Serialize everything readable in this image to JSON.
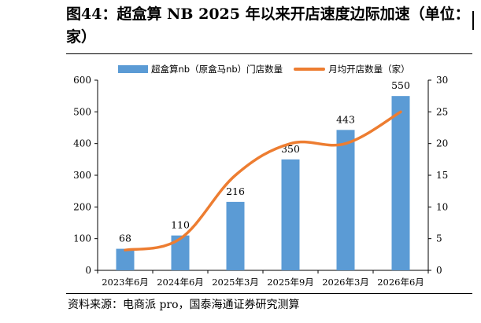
{
  "figure": {
    "title": "图44：超盒算 NB 2025 年以来开店速度边际加速（单位：家）",
    "source": "资料来源：电商派 pro，国泰海通证券研究测算"
  },
  "chart_data": {
    "type": "bar",
    "categories": [
      "2023年6月",
      "2024年6月",
      "2025年3月",
      "2025年9月",
      "2026年3月",
      "2026年6月"
    ],
    "series": [
      {
        "name": "超盒算nb（原盒马nb）门店数量",
        "type": "bar",
        "axis": "left",
        "color": "#5b9bd5",
        "values": [
          68,
          110,
          216,
          350,
          443,
          550
        ],
        "labels": [
          "68",
          "110",
          "216",
          "350",
          "443",
          "550"
        ]
      },
      {
        "name": "月均开店数量（家）",
        "type": "line",
        "axis": "right",
        "color": "#ed7d31",
        "smooth": true,
        "values": [
          3.2,
          5,
          15,
          20,
          20,
          25
        ]
      }
    ],
    "y_left": {
      "min": 0,
      "max": 600,
      "ticks": [
        0,
        100,
        200,
        300,
        400,
        500,
        600
      ]
    },
    "y_right": {
      "min": 0,
      "max": 30,
      "ticks": [
        0,
        5,
        10,
        15,
        20,
        25,
        30
      ]
    },
    "grid": false,
    "legend_position": "top"
  }
}
